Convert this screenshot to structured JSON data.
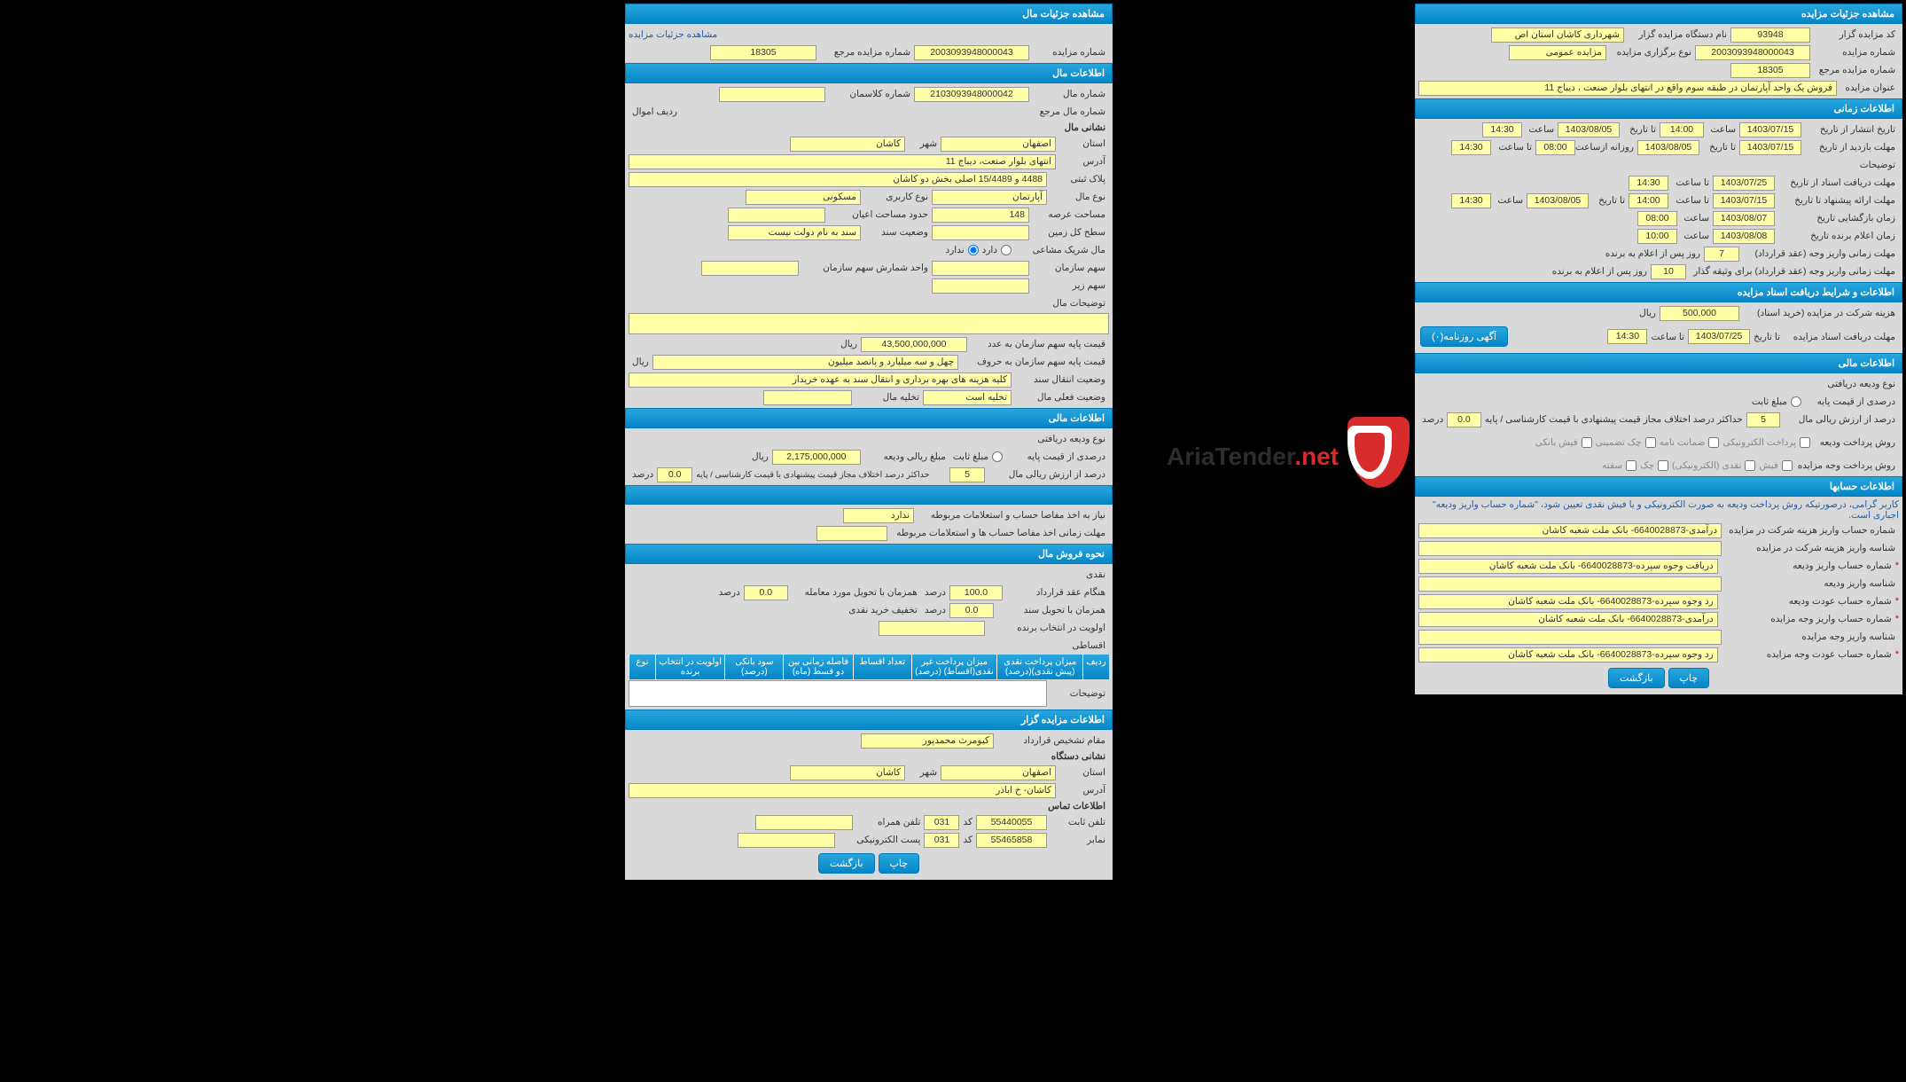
{
  "colors": {
    "header_bg_top": "#29a6dc",
    "header_bg_bottom": "#0486c8",
    "field_bg": "#ffffa8",
    "body_bg": "#d9d9d9",
    "link": "#1a5eb5",
    "red": "#d82b2b"
  },
  "left": {
    "sec1": {
      "title": "مشاهده جزئیات مزایده",
      "code_label": "کد مزایده گزار",
      "code": "93948",
      "device_label": "نام دستگاه مزایده گزار",
      "device": "شهرداری کاشان استان اص",
      "num_label": "شماره مزایده",
      "num": "2003093948000043",
      "type_label": "نوع برگزاری مزایده",
      "type": "مزایده عمومی",
      "ref_label": "شماره مزایده مرجع",
      "ref": "18305",
      "title_label": "عنوان مزایده",
      "title_val": "فروش یک واحد آپارتمان در طبقه سوم واقع در انتهای بلوار صنعت ، دیباج 11"
    },
    "sec2": {
      "title": "اطلاعات زمانی",
      "rows": [
        {
          "l1": "تاریخ انتشار از تاریخ",
          "v1": "1403/07/15",
          "l2": "ساعت",
          "v2": "14:00",
          "l3": "تا تاریخ",
          "v3": "1403/08/05",
          "l4": "ساعت",
          "v4": "14:30"
        },
        {
          "l1": "مهلت بازدید    از تاریخ",
          "v1": "1403/07/15",
          "l2": "تا تاریخ",
          "v2": "1403/08/05",
          "l3": "روزانه ازساعت",
          "v3": "08:00",
          "l4": "تا ساعت",
          "v4": "14:30"
        }
      ],
      "desc_label": "توضیحات",
      "rows2": [
        {
          "l1": "مهلت دریافت اسناد   از تاریخ",
          "v1": "1403/07/25",
          "l2": "تا ساعت",
          "v2": "14:30"
        },
        {
          "l1": "مهلت ارائه پیشنهاد   تا تاریخ",
          "v1": "1403/07/15",
          "l2": "تا ساعت",
          "v2": "14:00",
          "l3": "تا تاریخ",
          "v3": "1403/08/05",
          "l4": "ساعت",
          "v4": "14:30"
        },
        {
          "l1": "زمان بازگشایی        تاریخ",
          "v1": "1403/08/07",
          "l2": "ساعت",
          "v2": "08:00"
        },
        {
          "l1": "زمان اعلام برنده     تاریخ",
          "v1": "1403/08/08",
          "l2": "ساعت",
          "v2": "10:00"
        }
      ],
      "deadline1_label": "مهلت زمانی واریز وجه (عقد قرارداد)",
      "deadline1_val": "7",
      "deadline1_suffix": "روز پس از اعلام به برنده",
      "deadline2_label": "مهلت زمانی واریز وجه (عقد قرارداد) برای وثیقه گذار",
      "deadline2_val": "10",
      "deadline2_suffix": "روز پس از اعلام به برنده"
    },
    "sec3": {
      "title": "اطلاعات و شرایط دریافت اسناد مزایده",
      "fee_label": "هزینه شرکت در مزایده (خرید اسناد)",
      "fee": "500,000",
      "fee_unit": "ریال",
      "until_label": "مهلت دریافت اسناد مزایده",
      "until_date_label": "تا تاریخ",
      "until_date": "1403/07/25",
      "until_time_label": "تا ساعت",
      "until_time": "14:30",
      "btn": "آگهی روزنامه(۰)"
    },
    "sec4": {
      "title": "اطلاعات مالی",
      "deposit_type_label": "نوع ودیعه دریافتی",
      "base_pct_label": "درصدی از قیمت پایه",
      "fixed_label": "مبلغ ثابت",
      "rial_pct_label": "درصد از ارزش ریالی مال",
      "rial_pct": "5",
      "max_diff_label": "حداکثر درصد اختلاف مجاز قیمت پیشنهادی با قیمت کارشناسی / پایه",
      "max_diff": "0.0",
      "max_diff_unit": "درصد",
      "pay_method_label": "روش پرداخت ودیعه",
      "methods": [
        "پرداخت الکترونیکی",
        "ضمانت نامه",
        "چک تضمینی",
        "فیش بانکی"
      ],
      "pay_method2_label": "روش پرداخت وجه مزایده",
      "methods2": [
        "فیش",
        "نقدی (الکترونیکی)",
        "چک",
        "سفته"
      ]
    },
    "sec5": {
      "title": "اطلاعات حسابها",
      "note": "کاربر گرامی، درصورتیکه روش پرداخت ودیعه به صورت الکترونیکی و یا فیش نقدی تعیین شود، \"شماره حساب واریز ودیعه\" اجباری است.",
      "rows": [
        {
          "l": "شماره حساب واریز هزینه شرکت در مزایده",
          "v": "درآمدی-6640028873- بانک ملت شعبه کاشان"
        },
        {
          "l": "شناسه واریز هزینه شرکت در مزایده",
          "v": ""
        },
        {
          "l": "شماره حساب واریز ودیعه",
          "v": "دریافت وجوه سپرده-6640028873- بانک ملت شعبه کاشان",
          "star": true
        },
        {
          "l": "شناسه واریز ودیعه",
          "v": ""
        },
        {
          "l": "شماره حساب عودت ودیعه",
          "v": "رد وجوه سپرده-6640028873- بانک ملت شعبه کاشان",
          "star": true
        },
        {
          "l": "شماره حساب واریز وجه مزایده",
          "v": "درآمدی-6640028873- بانک ملت شعبه کاشان",
          "star": true
        },
        {
          "l": "شناسه واریز وجه مزایده",
          "v": ""
        },
        {
          "l": "شماره حساب عودت وجه مزایده",
          "v": "رد وجوه سپرده-6640028873- بانک ملت شعبه کاشان",
          "star": true
        }
      ],
      "btn_print": "چاپ",
      "btn_back": "بازگشت"
    }
  },
  "right": {
    "sec1": {
      "title": "مشاهده جزئیات مال",
      "link": "مشاهده جزئیات مزایده",
      "num_label": "شماره مزایده",
      "num": "2003093948000043",
      "ref_label": "شماره مزایده مرجع",
      "ref": "18305"
    },
    "sec2": {
      "title": "اطلاعات مال",
      "mal_num_label": "شماره مال",
      "mal_num": "2103093948000042",
      "class_label": "شماره کلاسمان",
      "ref_mal_label": "شماره مال مرجع",
      "row_label": "ردیف اموال",
      "sub_header": "نشانی مال",
      "province_label": "استان",
      "province": "اصفهان",
      "city_label": "شهر",
      "city": "کاشان",
      "address_label": "آدرس",
      "address": "انتهای بلوار صنعت، دیباج 11",
      "plaque_label": "پلاک ثبتی",
      "plaque": "4488 و 15/4489 اصلی بخش دو کاشان",
      "mal_type_label": "نوع مال",
      "mal_type": "آپارتمان",
      "usage_label": "نوع کاربری",
      "usage": "مسکونی",
      "area_label": "مساحت عرصه",
      "area": "148",
      "ayan_label": "حدود مساحت اعیان",
      "land_label": "سطح کل زمین",
      "status_label": "وضعیت سند",
      "status": "سند به نام دولت نیست",
      "shared_label": "مال شریک مشاعی",
      "shared_yes": "دارد",
      "shared_no": "ندارد",
      "org_share_label": "سهم سازمان",
      "unit_label": "واحد شمارش سهم سازمان",
      "sub_share_label": "سهم زیر",
      "desc_label": "توضیحات مال",
      "base_num_label": "قیمت پایه سهم سازمان به عدد",
      "base_num": "43,500,000,000",
      "base_num_unit": "ریال",
      "base_text_label": "قیمت پایه سهم سازمان به حروف",
      "base_text": "چهل و سه میلیارد و پانصد میلیون",
      "base_text_unit": "ریال",
      "transfer_label": "وضعیت انتقال سند",
      "transfer": "کلیه هزینه های بهره برداری و انتقال سند به عهده خریدار",
      "current_label": "وضعیت فعلی مال",
      "current": "تخلیه است",
      "evac_label": "تخلیه مال"
    },
    "sec3": {
      "title": "اطلاعات مالی",
      "deposit_type_label": "نوع ودیعه دریافتی",
      "base_pct_label": "درصدی از قیمت پایه",
      "fixed_label": "مبلغ ثابت",
      "rial_amount_label": "مبلغ ریالی ودیعه",
      "rial_amount": "2,175,000,000",
      "rial_unit": "ریال",
      "rial_pct_label": "درصد از ارزش ریالی مال",
      "rial_pct": "5",
      "max_diff_label": "حداکثر درصد اختلاف مجاز قیمت پیشنهادی با قیمت کارشناسی / پایه",
      "max_diff": "0.0",
      "max_diff_unit": "درصد"
    },
    "sec4": {
      "title": "",
      "need_docs_label": "نیاز به اخذ مفاصا حساب و استعلامات مربوطه",
      "need_docs": "ندارد",
      "deadline_docs_label": "مهلت زمانی اخذ مفاصا حساب ها و استعلامات مربوطه"
    },
    "sec5": {
      "title": "نحوه فروش مال",
      "cash_label": "نقدی",
      "contract_pct_label": "هنگام عقد قرارداد",
      "contract_pct": "100.0",
      "contract_unit": "درصد",
      "delivery_pct_label": "همزمان با تحویل مورد معامله",
      "delivery_pct": "0.0",
      "delivery_unit": "درصد",
      "doc_transfer_label": "همزمان با تحویل سند",
      "doc_transfer_pct": "0.0",
      "doc_transfer_unit": "درصد",
      "cash_discount_label": "تخفیف خرید نقدی",
      "priority_label": "اولویت در انتخاب برنده",
      "installment_label": "اقساطی",
      "table_headers": [
        "ردیف",
        "میزان پرداخت نقدی (پیش نقدی)(درصد)",
        "میزان پرداخت غیر نقدی(اقساط) (درصد)",
        "تعداد اقساط",
        "فاصله زمانی بین دو قسط (ماه)",
        "سود بانکی (درصد)",
        "اولویت در انتخاب برنده",
        "نوع"
      ],
      "desc_label": "توضیحات"
    },
    "sec6": {
      "title": "اطلاعات مزایده گزار",
      "person_label": "مقام تشخیص قرارداد",
      "person": "کیومرث محمدپور",
      "sub_header": "نشانی دستگاه",
      "province_label": "استان",
      "province": "اصفهان",
      "city_label": "شهر",
      "city": "کاشان",
      "address_label": "آدرس",
      "address": "کاشان- خ اباذر",
      "contact_header": "اطلاعات تماس",
      "phone_label": "تلفن ثابت",
      "phone": "55440055",
      "code_label": "کد",
      "code": "031",
      "mobile_label": "تلفن همراه",
      "fax_label": "نمابر",
      "fax": "55465858",
      "fax_code_label": "کد",
      "fax_code": "031",
      "email_label": "پست الکترونیکی",
      "btn_print": "چاپ",
      "btn_back": "بازگشت"
    }
  },
  "watermark": {
    "text1": "AriaTender",
    "text2": ".net"
  }
}
